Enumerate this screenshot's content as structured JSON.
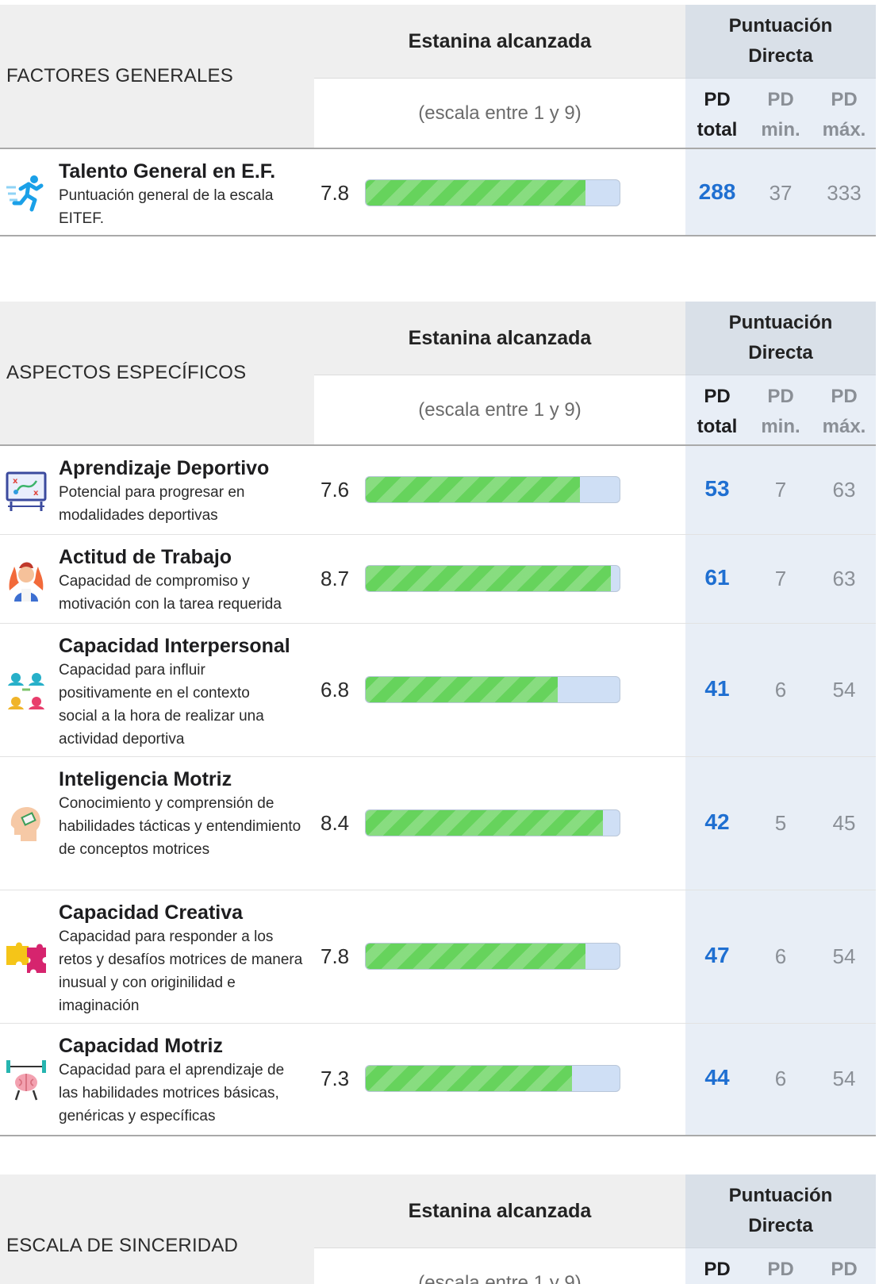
{
  "labels": {
    "estanina": "Estanina alcanzada",
    "escala": "(escala entre 1 y 9)",
    "puntuacion_line1": "Puntuación",
    "puntuacion_line2": "Directa",
    "pd": "PD",
    "total": "total",
    "min": "min.",
    "max": "máx."
  },
  "sections": [
    {
      "title": "FACTORES GENERALES",
      "rows": [
        {
          "icon": "running-person-icon",
          "title": "Talento General en E.F.",
          "description": "Puntuación general de la escala EITEF.",
          "stanine": "7.8",
          "stanine_value": 7.8,
          "pd_total": "288",
          "pd_min": "37",
          "pd_max": "333"
        }
      ]
    },
    {
      "title": "ASPECTOS ESPECÍFICOS",
      "rows": [
        {
          "icon": "strategy-board-icon",
          "title": "Aprendizaje Deportivo",
          "description": "Potencial para progresar en modalidades deportivas",
          "stanine": "7.6",
          "stanine_value": 7.6,
          "pd_total": "53",
          "pd_min": "7",
          "pd_max": "63"
        },
        {
          "icon": "motivated-worker-icon",
          "title": "Actitud de Trabajo",
          "description": "Capacidad de compromiso y motivación con la tarea requerida",
          "stanine": "8.7",
          "stanine_value": 8.7,
          "pd_total": "61",
          "pd_min": "7",
          "pd_max": "63"
        },
        {
          "icon": "people-circle-icon",
          "title": "Capacidad Interpersonal",
          "description": "Capacidad para influir positivamente en el contexto social a la hora de realizar una actividad deportiva",
          "stanine": "6.8",
          "stanine_value": 6.8,
          "pd_total": "41",
          "pd_min": "6",
          "pd_max": "54"
        },
        {
          "icon": "head-book-icon",
          "title": "Inteligencia Motriz",
          "description": "Conocimiento y comprensión de habilidades tácticas y entendimiento de conceptos motrices",
          "stanine": "8.4",
          "stanine_value": 8.4,
          "pd_total": "42",
          "pd_min": "5",
          "pd_max": "45"
        },
        {
          "icon": "puzzle-icon",
          "title": "Capacidad Creativa",
          "description": "Capacidad para responder a los retos y desafíos motrices de manera inusual y con originilidad e imaginación",
          "stanine": "7.8",
          "stanine_value": 7.8,
          "pd_total": "47",
          "pd_min": "6",
          "pd_max": "54"
        },
        {
          "icon": "brain-weights-icon",
          "title": "Capacidad Motriz",
          "description": "Capacidad para el aprendizaje de las habilidades motrices básicas, genéricas y específicas",
          "stanine": "7.3",
          "stanine_value": 7.3,
          "pd_total": "44",
          "pd_min": "6",
          "pd_max": "54"
        }
      ]
    },
    {
      "title": "ESCALA DE SINCERIDAD",
      "rows": []
    }
  ],
  "colors": {
    "bar_fill": "#66d35c",
    "bar_track": "#cfdff5",
    "pd_total": "#1f6fd1",
    "pd_header": "#d9e0e8",
    "pd_column": "#e8eef6",
    "header_bg": "#efefef"
  }
}
